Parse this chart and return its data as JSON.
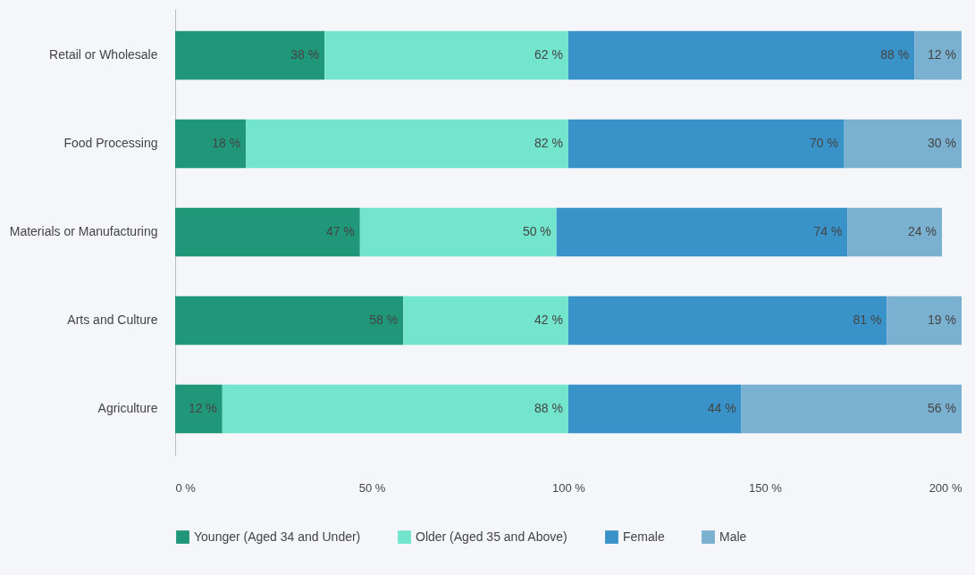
{
  "chart_data": {
    "type": "bar",
    "orientation": "horizontal",
    "stacked": true,
    "categories": [
      "Retail or Wholesale",
      "Food Processing",
      "Materials or Manufacturing",
      "Arts and Culture",
      "Agriculture"
    ],
    "series": [
      {
        "name": "Younger (Aged 34 and Under)",
        "color": "#21977a",
        "values": [
          38,
          18,
          47,
          58,
          12
        ],
        "value_labels": [
          "38 %",
          "18 %",
          "47 %",
          "58 %",
          "12 %"
        ]
      },
      {
        "name": "Older (Aged 35 and Above)",
        "color": "#72e5cc",
        "values": [
          62,
          82,
          50,
          42,
          88
        ],
        "value_labels": [
          "62 %",
          "82 %",
          "50 %",
          "42 %",
          "88 %"
        ]
      },
      {
        "name": "Female",
        "color": "#3a93c8",
        "values": [
          88,
          70,
          74,
          81,
          44
        ],
        "value_labels": [
          "88 %",
          "70 %",
          "74 %",
          "81 %",
          "44 %"
        ]
      },
      {
        "name": "Male",
        "color": "#7ab0d0",
        "values": [
          12,
          30,
          24,
          19,
          56
        ],
        "value_labels": [
          "12 %",
          "30 %",
          "24 %",
          "19 %",
          "56 %"
        ]
      }
    ],
    "xlim": [
      0,
      200
    ],
    "xticks": [
      {
        "value": 0,
        "label": "0 %"
      },
      {
        "value": 50,
        "label": "50 %"
      },
      {
        "value": 100,
        "label": "100 %"
      },
      {
        "value": 150,
        "label": "150 %"
      },
      {
        "value": 200,
        "label": "200 %"
      }
    ],
    "grid": false,
    "legend": "bottom"
  }
}
